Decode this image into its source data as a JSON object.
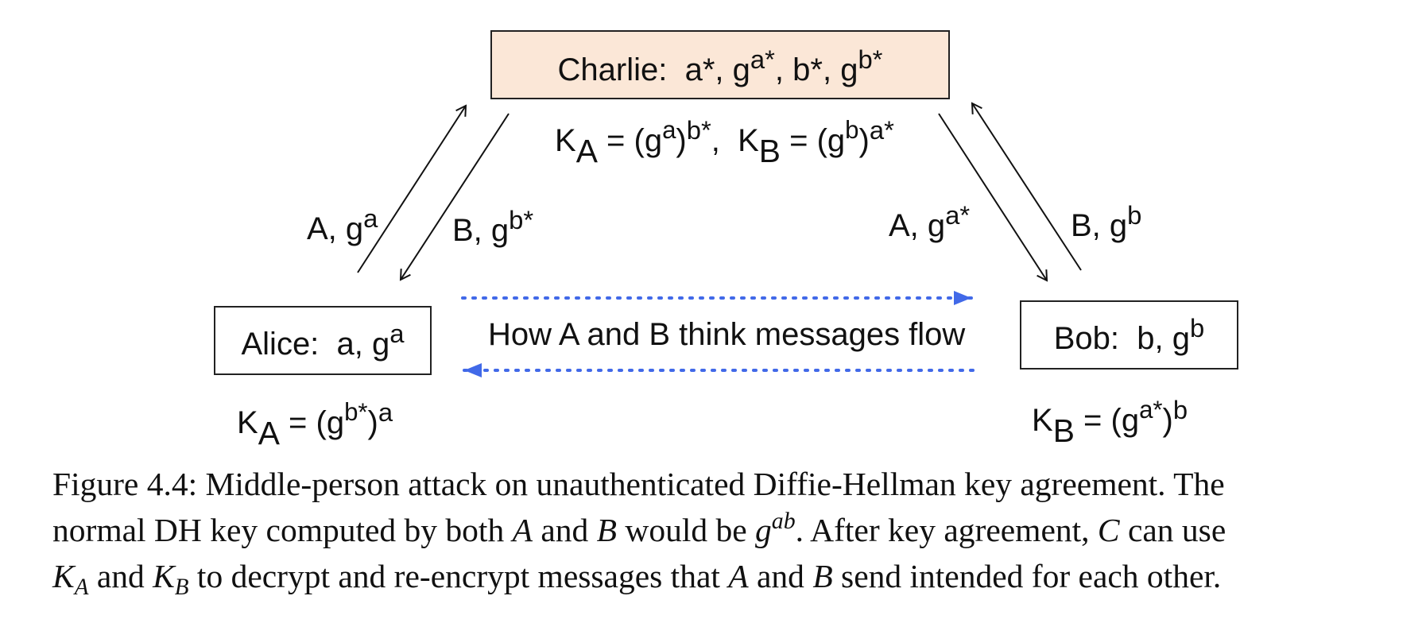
{
  "colors": {
    "charlie_fill": "#fbe7d7",
    "box_border": "#222222",
    "flow_arrow": "#4169e8",
    "text": "#111111"
  },
  "charlie": {
    "name": "Charlie:",
    "v1": "a*, g",
    "v1_sup": "a*",
    "v2": ", b*, g",
    "v2_sup": "b*"
  },
  "charlie_keys": {
    "ka_k": "K",
    "ka_sub": "A",
    "ka_eq": " = (g",
    "ka_inner_sup": "a",
    "ka_close": ")",
    "ka_outer_sup": "b*",
    "sep": ",  ",
    "kb_k": "K",
    "kb_sub": "B",
    "kb_eq": " = (g",
    "kb_inner_sup": "b",
    "kb_close": ")",
    "kb_outer_sup": "a*"
  },
  "alice": {
    "name": "Alice:",
    "vals": "a, g",
    "vals_sup": "a"
  },
  "alice_key": {
    "k": "K",
    "sub": "A",
    "eq": " = (g",
    "inner_sup": "b*",
    "close": ")",
    "outer_sup": "a"
  },
  "bob": {
    "name": "Bob:",
    "vals": "b, g",
    "vals_sup": "b"
  },
  "bob_key": {
    "k": "K",
    "sub": "B",
    "eq": " = (g",
    "inner_sup": "a*",
    "close": ")",
    "outer_sup": "b"
  },
  "messages": {
    "alice_to_charlie": {
      "text": "A, g",
      "sup": "a"
    },
    "charlie_to_alice": {
      "text": "B, g",
      "sup": "b*"
    },
    "charlie_to_bob": {
      "text": "A, g",
      "sup": "a*"
    },
    "bob_to_charlie": {
      "text": "B, g",
      "sup": "b"
    }
  },
  "flow_label": "How A and B think messages flow",
  "caption": {
    "l1": "Figure 4.4: Middle-person attack on unauthenticated Diffie-Hellman key agreement. The",
    "l2a": "normal DH key computed by both ",
    "l2_A": "A",
    "l2b": " and ",
    "l2_B": "B",
    "l2c": " would be ",
    "l2_g": "g",
    "l2_ab": "ab",
    "l2d": ". After key agreement, ",
    "l2_C": "C",
    "l2e": " can use",
    "l3_K1": "K",
    "l3_K1sub": "A",
    "l3a": " and ",
    "l3_K2": "K",
    "l3_K2sub": "B",
    "l3b": " to decrypt and re-encrypt messages that ",
    "l3_A": "A",
    "l3c": " and ",
    "l3_B": "B",
    "l3d": " send intended for each other."
  }
}
